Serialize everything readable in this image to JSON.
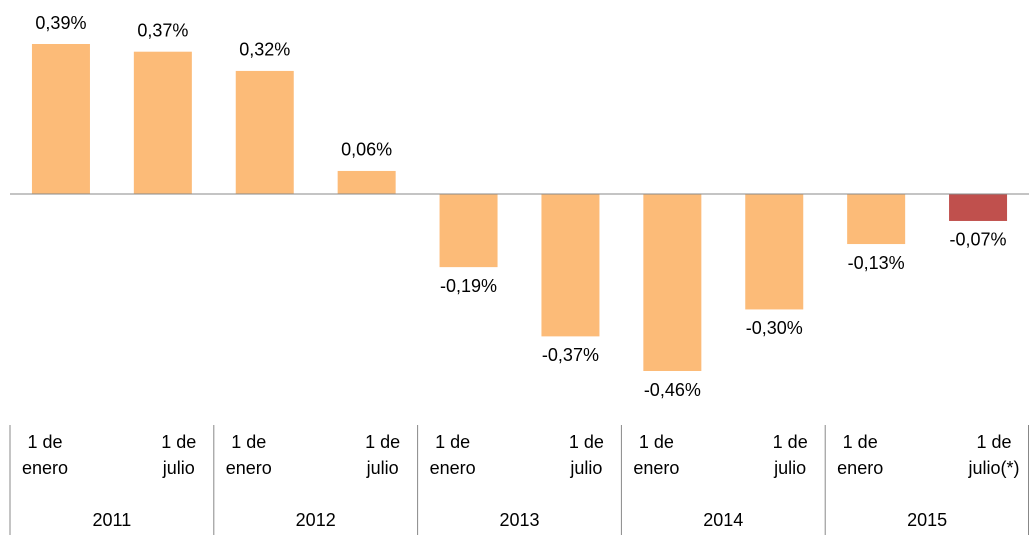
{
  "chart_data": {
    "type": "bar",
    "categories": [
      [
        "1 de",
        "enero"
      ],
      [
        "1 de",
        "julio"
      ],
      [
        "1 de",
        "enero"
      ],
      [
        "1 de",
        "julio"
      ],
      [
        "1 de",
        "enero"
      ],
      [
        "1 de",
        "julio"
      ],
      [
        "1 de",
        "enero"
      ],
      [
        "1 de",
        "julio"
      ],
      [
        "1 de",
        "enero"
      ],
      [
        "1 de",
        "julio(*)"
      ]
    ],
    "groups": [
      "2011",
      "2012",
      "2013",
      "2014",
      "2015"
    ],
    "values": [
      0.39,
      0.37,
      0.32,
      0.06,
      -0.19,
      -0.37,
      -0.46,
      -0.3,
      -0.13,
      -0.07
    ],
    "value_labels": [
      "0,39%",
      "0,37%",
      "0,32%",
      "0,06%",
      "-0,19%",
      "-0,37%",
      "-0,46%",
      "-0,30%",
      "-0,13%",
      "-0,07%"
    ],
    "colors": [
      "#fcbb78",
      "#fcbb78",
      "#fcbb78",
      "#fcbb78",
      "#fcbb78",
      "#fcbb78",
      "#fcbb78",
      "#fcbb78",
      "#fcbb78",
      "#c0504d"
    ]
  }
}
